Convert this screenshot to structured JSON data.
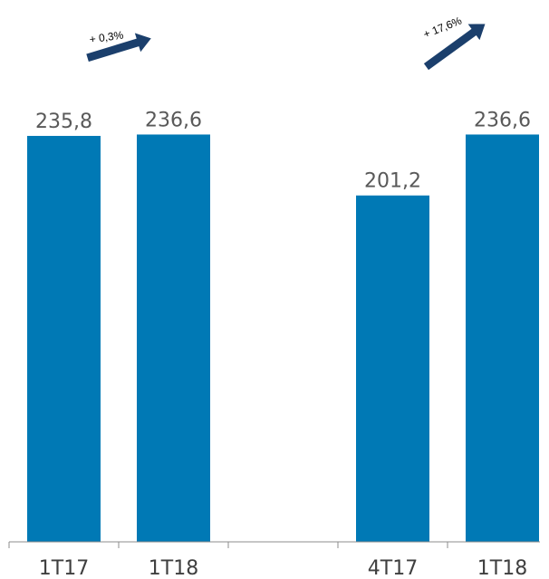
{
  "chart_data": {
    "type": "bar",
    "categories": [
      "1T17",
      "1T18",
      "",
      "4T17",
      "1T18"
    ],
    "values": [
      235.8,
      236.6,
      null,
      201.2,
      236.6
    ],
    "value_labels": [
      "235,8",
      "236,6",
      "",
      "201,2",
      "236,6"
    ],
    "ylim": [
      0,
      300
    ],
    "grid": false,
    "bar_color": "#0079b5",
    "annotations": [
      {
        "text": "+ 0,3%",
        "from": "1T17",
        "to": "1T18"
      },
      {
        "text": "+ 17,6%",
        "from": "4T17",
        "to": "1T18"
      }
    ]
  },
  "colors": {
    "arrow_fill": "#1b3f6c",
    "axis": "#8c8c8c"
  }
}
